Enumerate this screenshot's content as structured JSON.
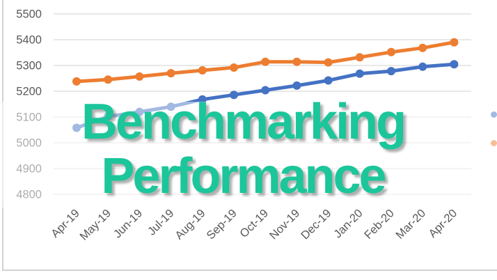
{
  "watermark": {
    "line1": "Benchmarking",
    "line2": "Performance",
    "text_color": "#1BC69A"
  },
  "chart_data": {
    "type": "line",
    "title": "",
    "xlabel": "",
    "ylabel": "",
    "categories": [
      "Apr-19",
      "May-19",
      "Jun-19",
      "Jul-19",
      "Aug-19",
      "Sep-19",
      "Oct-19",
      "Nov-19",
      "Dec-19",
      "Jan-20",
      "Feb-20",
      "Mar-20",
      "Apr-20"
    ],
    "series": [
      {
        "name": "blue-series",
        "color": "#4472C4",
        "values": [
          5058,
          5102,
          5120,
          5140,
          5168,
          5186,
          5204,
          5222,
          5242,
          5268,
          5278,
          5295,
          5305
        ]
      },
      {
        "name": "orange-series",
        "color": "#ED7D31",
        "values": [
          5238,
          5245,
          5257,
          5270,
          5281,
          5292,
          5314,
          5314,
          5312,
          5332,
          5352,
          5368,
          5390
        ]
      }
    ],
    "ylim": [
      4800,
      5500
    ],
    "yticks": [
      5500,
      5400,
      5300,
      5200,
      5100,
      5000,
      4900,
      4800
    ],
    "xtick_rotation": 45,
    "grid": true,
    "gridline_color": "#D9D9D9",
    "axis_label_color": "#595959",
    "marker": "circle",
    "legend_position": "right, cut off at image edge"
  },
  "legend": {
    "markers": [
      {
        "name": "blue",
        "color": "#4472C4"
      },
      {
        "name": "orange",
        "color": "#ED7D31"
      }
    ]
  }
}
